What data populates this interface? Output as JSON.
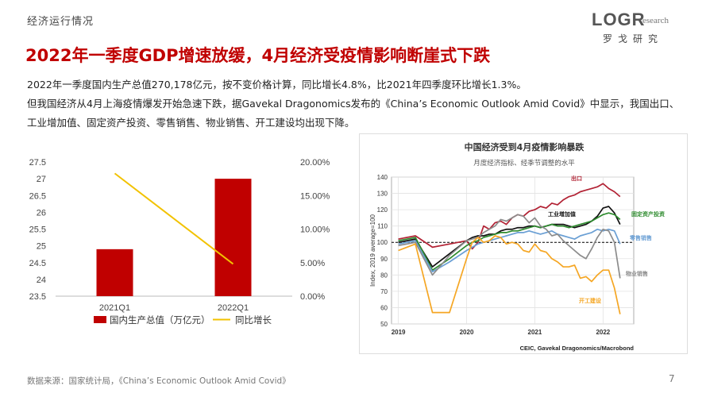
{
  "header": {
    "section": "经济运行情况",
    "logo_main": "LOGR",
    "logo_sub": "esearch",
    "logo_cn": "罗戈研究"
  },
  "title": "2022年一季度GDP增速放缓，4月经济受疫情影响断崖式下跌",
  "paragraphs": [
    "2022年一季度国内生产总值270,178亿元，按不变价格计算，同比增长4.8%，比2021年四季度环比增长1.3%。",
    "但我国经济从4月上海疫情爆发开始急速下跌，据Gavekal Dragonomics发布的《China’s Economic Outlook Amid Covid》中显示，我国出口、",
    "工业增加值、固定资产投资、零售销售、物业销售、开工建设均出现下降。"
  ],
  "footer": {
    "source": "数据来源：国家统计局，《China’s Economic Outlook Amid Covid》",
    "page": "7"
  },
  "colors": {
    "accent": "#c00000",
    "yoy_line": "#f2c200"
  },
  "chart_data": [
    {
      "type": "bar",
      "categories": [
        "2021Q1",
        "2022Q1"
      ],
      "series": [
        {
          "name": "国内生产总值（万亿元）",
          "kind": "bar",
          "axis": "left",
          "values": [
            24.9,
            27.0
          ]
        },
        {
          "name": "同比增长",
          "kind": "line",
          "axis": "right",
          "values": [
            18.3,
            4.8
          ]
        }
      ],
      "y_left": {
        "min": 23.5,
        "max": 27.5,
        "ticks": [
          "27.5",
          "27",
          "26.5",
          "26",
          "25.5",
          "25",
          "24.5",
          "24",
          "23.5"
        ]
      },
      "y_right": {
        "min": 0,
        "max": 20,
        "ticks": [
          "20.00%",
          "15.00%",
          "10.00%",
          "5.00%",
          "0.00%"
        ]
      },
      "grid": false,
      "legend": "bottom"
    },
    {
      "type": "line",
      "title": "中国经济受到4月疫情影响暴跌",
      "subtitle": "月度经济指标、经季节调整的水平",
      "ylabel": "Index, 2019 average=100",
      "ylim": [
        50,
        140
      ],
      "y_ticks": [
        "140",
        "130",
        "120",
        "110",
        "100",
        "90",
        "80",
        "70",
        "60",
        "50"
      ],
      "x_ticks": [
        "2019",
        "2020",
        "2021",
        "2022"
      ],
      "grid": true,
      "reference_line": 100,
      "source": "CEIC, Gavekal Dragonomics/Macrobond",
      "x": [
        2019.0,
        2019.25,
        2019.5,
        2019.75,
        2020.0,
        2020.083,
        2020.167,
        2020.25,
        2020.333,
        2020.417,
        2020.5,
        2020.583,
        2020.667,
        2020.75,
        2020.833,
        2020.917,
        2021.0,
        2021.083,
        2021.167,
        2021.25,
        2021.333,
        2021.417,
        2021.5,
        2021.583,
        2021.667,
        2021.75,
        2021.833,
        2021.917,
        2022.0,
        2022.083,
        2022.167,
        2022.25
      ],
      "series": [
        {
          "name": "出口",
          "color": "#b22234",
          "values": [
            102,
            104,
            97,
            99,
            101,
            96,
            100,
            110,
            108,
            112,
            113,
            111,
            115,
            117,
            116,
            119,
            120,
            122,
            121,
            124,
            123,
            126,
            128,
            129,
            131,
            132,
            133,
            134,
            136,
            133,
            131,
            128
          ]
        },
        {
          "name": "工业增加值",
          "color": "#111111",
          "values": [
            100,
            102,
            85,
            93,
            101,
            103,
            104,
            104,
            105,
            105,
            107,
            108,
            108,
            109,
            109,
            110,
            110,
            109,
            110,
            111,
            111,
            111,
            110,
            109,
            110,
            111,
            113,
            116,
            121,
            122,
            118,
            111
          ]
        },
        {
          "name": "固定资产投资",
          "color": "#2e8b2e",
          "values": [
            101,
            103,
            83,
            90,
            98,
            100,
            101,
            103,
            104,
            105,
            106,
            106,
            107,
            107,
            108,
            109,
            110,
            109,
            110,
            111,
            110,
            110,
            109,
            110,
            111,
            112,
            113,
            115,
            117,
            118,
            117,
            114
          ]
        },
        {
          "name": "零售销售",
          "color": "#6a9fd4",
          "values": [
            99,
            101,
            82,
            88,
            95,
            97,
            99,
            100,
            101,
            102,
            103,
            104,
            105,
            106,
            106,
            107,
            106,
            105,
            106,
            107,
            105,
            104,
            103,
            102,
            104,
            105,
            106,
            108,
            107,
            108,
            107,
            99
          ]
        },
        {
          "name": "物业销售",
          "color": "#8c8c8c",
          "values": [
            98,
            100,
            80,
            92,
            101,
            102,
            103,
            106,
            108,
            110,
            114,
            113,
            115,
            117,
            116,
            112,
            115,
            110,
            108,
            104,
            105,
            101,
            98,
            95,
            92,
            90,
            96,
            103,
            108,
            107,
            100,
            78
          ]
        },
        {
          "name": "开工建设",
          "color": "#f5a623",
          "values": [
            95,
            99,
            57,
            57,
            90,
            100,
            103,
            100,
            101,
            104,
            103,
            99,
            100,
            99,
            95,
            94,
            99,
            95,
            94,
            90,
            88,
            85,
            85,
            86,
            78,
            79,
            76,
            80,
            83,
            83,
            72,
            56
          ]
        }
      ],
      "series_labels": [
        {
          "name": "出口",
          "color": "#b22234"
        },
        {
          "name": "工业增加值",
          "color": "#111111"
        },
        {
          "name": "固定资产投资",
          "color": "#2e8b2e"
        },
        {
          "name": "零售销售",
          "color": "#6a9fd4"
        },
        {
          "name": "物业销售",
          "color": "#8c8c8c"
        },
        {
          "name": "开工建设",
          "color": "#f5a623"
        }
      ]
    }
  ]
}
